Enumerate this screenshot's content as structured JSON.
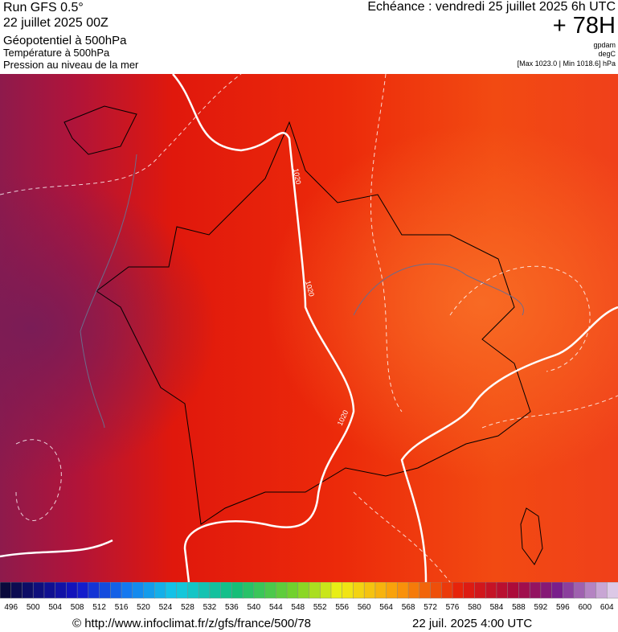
{
  "header": {
    "run": "Run GFS 0.5°",
    "date": "22 juillet 2025 00Z",
    "field1": "Géopotentiel à 500hPa",
    "field2": "Température à 500hPa",
    "field3": "Pression au niveau de la mer",
    "echeance": "Echéance : vendredi 25 juillet 2025 6h UTC",
    "lead": "+ 78H",
    "unit1": "gpdam",
    "unit2": "degC",
    "minmax": "[Max 1023.0 | Min 1018.6] hPa"
  },
  "map": {
    "contour_labels": [
      "1020",
      "1020",
      "1020"
    ]
  },
  "colorbar": {
    "labels": [
      496,
      500,
      504,
      508,
      512,
      516,
      520,
      524,
      528,
      532,
      536,
      540,
      544,
      548,
      552,
      556,
      560,
      564,
      568,
      572,
      576,
      580,
      584,
      588,
      592,
      596,
      600,
      604
    ]
  },
  "footer": {
    "source": "© http://www.infoclimat.fr/z/gfs/france/500/78",
    "time": "22 juil. 2025  4:00 UTC"
  }
}
